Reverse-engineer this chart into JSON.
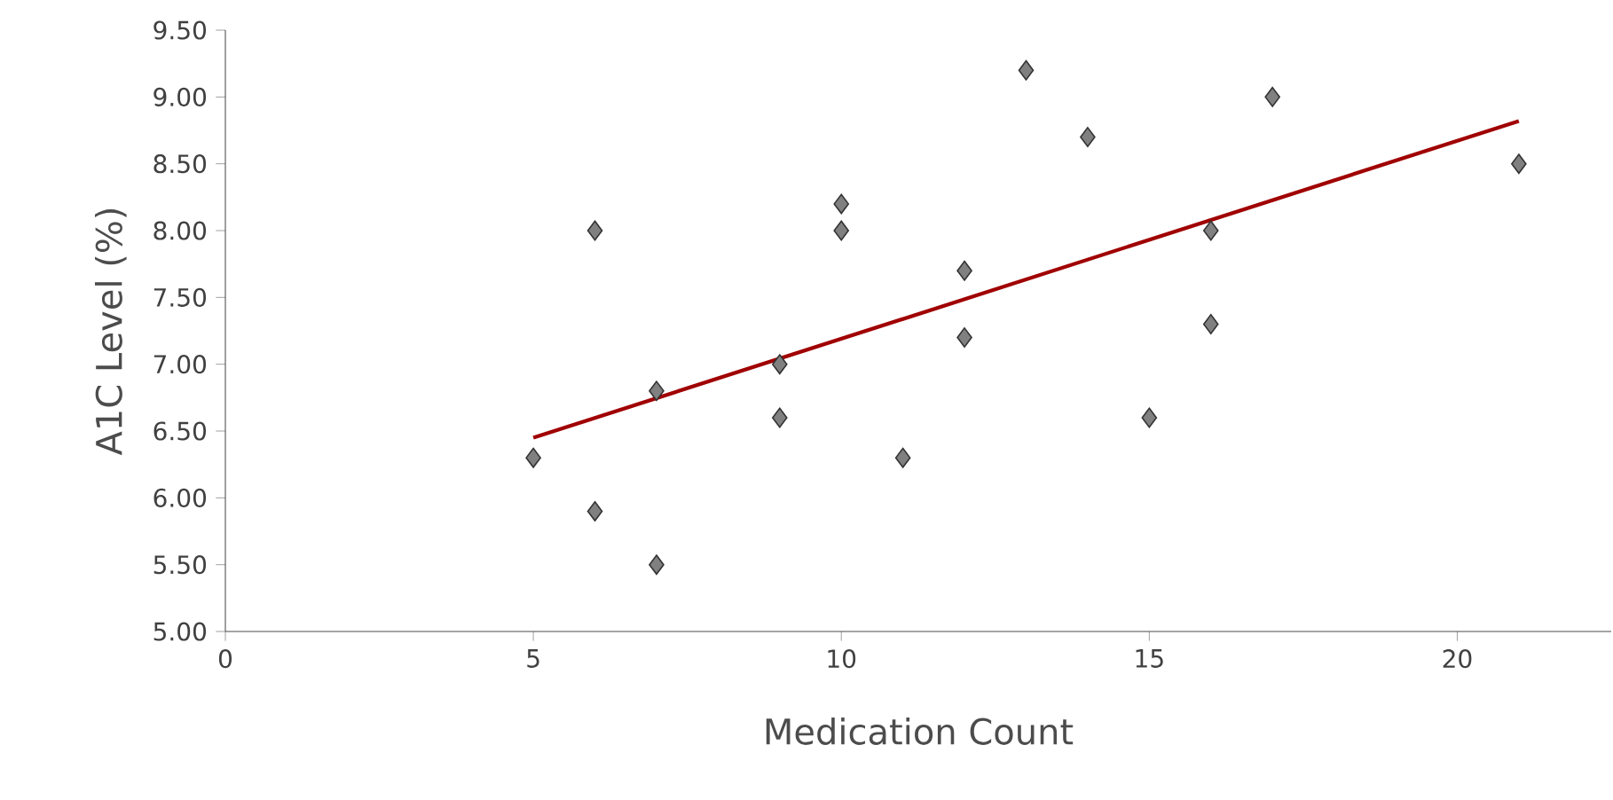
{
  "chart_data": {
    "type": "scatter",
    "xlabel": "Medication Count",
    "ylabel": "A1C Level (%)",
    "xlim": [
      0,
      22.5
    ],
    "xticks": [
      0,
      5,
      10,
      15,
      20
    ],
    "ylim": [
      5,
      9.5
    ],
    "yticks": [
      {
        "value": 5,
        "label": "5.00"
      },
      {
        "value": 5.5,
        "label": "5.50"
      },
      {
        "value": 6,
        "label": "6.00"
      },
      {
        "value": 6.5,
        "label": "6.50"
      },
      {
        "value": 7,
        "label": "7.00"
      },
      {
        "value": 7.5,
        "label": "7.50"
      },
      {
        "value": 8,
        "label": "8.00"
      },
      {
        "value": 8.5,
        "label": "8.50"
      },
      {
        "value": 9,
        "label": "9.00"
      },
      {
        "value": 9.5,
        "label": "9.50"
      }
    ],
    "grid": false,
    "series": [
      {
        "marker": "diamond",
        "color": "#808080",
        "x": [
          5,
          6,
          6,
          7,
          7,
          9,
          9,
          10,
          10,
          11,
          12,
          12,
          13,
          14,
          15,
          16,
          16,
          17,
          21
        ],
        "values": [
          6.3,
          8.0,
          5.9,
          6.8,
          5.5,
          7.0,
          6.6,
          8.2,
          8.0,
          6.3,
          7.7,
          7.2,
          9.2,
          8.7,
          6.6,
          8.0,
          7.3,
          9.0,
          8.5
        ]
      },
      {
        "type": "line",
        "marker": "none",
        "line_style": "solid",
        "color": "#a00000",
        "x": [
          5,
          21
        ],
        "values": [
          6.45,
          8.82
        ]
      }
    ]
  }
}
